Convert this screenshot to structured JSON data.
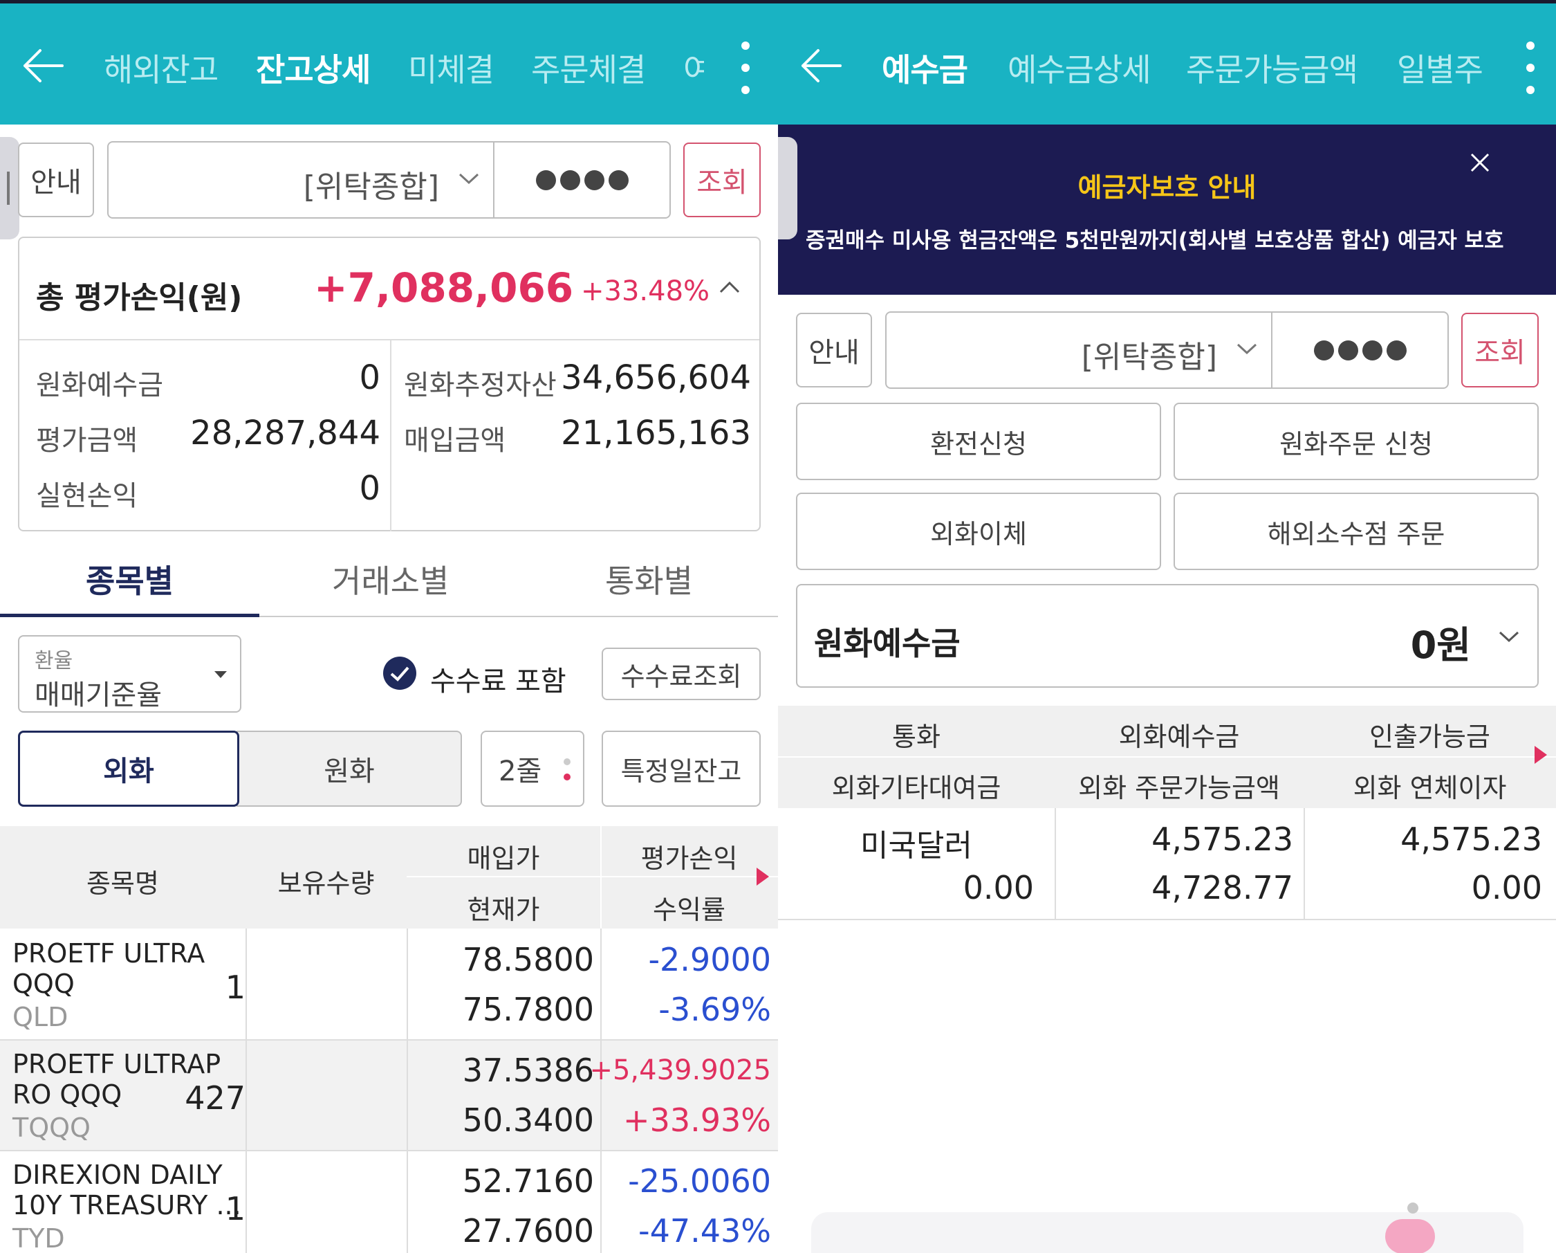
{
  "left": {
    "tabs": [
      "해외잔고",
      "잔고상세",
      "미체결",
      "주문체결",
      "여"
    ],
    "active_tab": 1,
    "info_button": "안내",
    "account_type": "[위탁종합]",
    "query_button": "조회",
    "summary": {
      "title": "총 평가손익(원)",
      "total_pl": "+7,088,066",
      "total_pct": "+33.48%",
      "krw_deposit_label": "원화예수금",
      "krw_deposit_value": "0",
      "eval_amount_label": "평가금액",
      "eval_amount_value": "28,287,844",
      "realized_label": "실현손익",
      "realized_value": "0",
      "krw_est_label": "원화추정자산",
      "krw_est_value": "34,656,604",
      "purchase_label": "매입금액",
      "purchase_value": "21,165,163"
    },
    "segment_tabs": [
      "종목별",
      "거래소별",
      "통화별"
    ],
    "rate_label": "환율",
    "rate_value": "매매기준율",
    "fee_include": "수수료 포함",
    "fee_query": "수수료조회",
    "currency_toggle": [
      "외화",
      "원화"
    ],
    "lines_select": "2줄",
    "specific_date": "특정일잔고",
    "table_headers": {
      "name": "종목명",
      "qty": "보유수량",
      "buy_price": "매입가",
      "current_price": "현재가",
      "eval_pl": "평가손익",
      "return_rate": "수익률"
    },
    "rows": [
      {
        "name1": "PROETF ULTRA",
        "name2": "QQQ",
        "ticker": "QLD",
        "qty": "1",
        "buy": "78.5800",
        "cur": "75.7800",
        "pl": "-2.9000",
        "rate": "-3.69%",
        "sign": "neg"
      },
      {
        "name1": "PROETF ULTRAP",
        "name2": "RO QQQ",
        "ticker": "TQQQ",
        "qty": "427",
        "buy": "37.5386",
        "cur": "50.3400",
        "pl": "+5,439.9025",
        "rate": "+33.93%",
        "sign": "pos"
      },
      {
        "name1": "DIREXION DAILY",
        "name2": "10Y TREASURY ...",
        "ticker": "TYD",
        "qty": "1",
        "buy": "52.7160",
        "cur": "27.7600",
        "pl": "-25.0060",
        "rate": "-47.43%",
        "sign": "neg"
      }
    ]
  },
  "right": {
    "tabs": [
      "예수금",
      "예수금상세",
      "주문가능금액",
      "일별주"
    ],
    "active_tab": 0,
    "notice_title": "예금자보호 안내",
    "notice_text": "증권매수 미사용 현금잔액은 5천만원까지(회사별 보호상품 합산) 예금자 보호",
    "info_button": "안내",
    "account_type": "[위탁종합]",
    "query_button": "조회",
    "action_buttons": [
      "환전신청",
      "원화주문 신청",
      "외화이체",
      "해외소수점 주문"
    ],
    "krw_deposit_label": "원화예수금",
    "krw_deposit_value": "0원",
    "table_headers": {
      "row1": [
        "통화",
        "외화예수금",
        "인출가능금"
      ],
      "row2": [
        "외화기타대여금",
        "외화 주문가능금액",
        "외화 연체이자"
      ]
    },
    "row": {
      "currency": "미국달러",
      "other_loan": "0.00",
      "fx_deposit": "4,575.23",
      "fx_orderable": "4,728.77",
      "withdrawable": "4,575.23",
      "overdue_interest": "0.00"
    }
  },
  "colors": {
    "header": "#19b3c3",
    "notice_bg": "#1c1b52",
    "notice_title": "#f5c518",
    "positive": "#e0305f",
    "negative": "#2a4fd0",
    "navy": "#1f2a5c"
  }
}
